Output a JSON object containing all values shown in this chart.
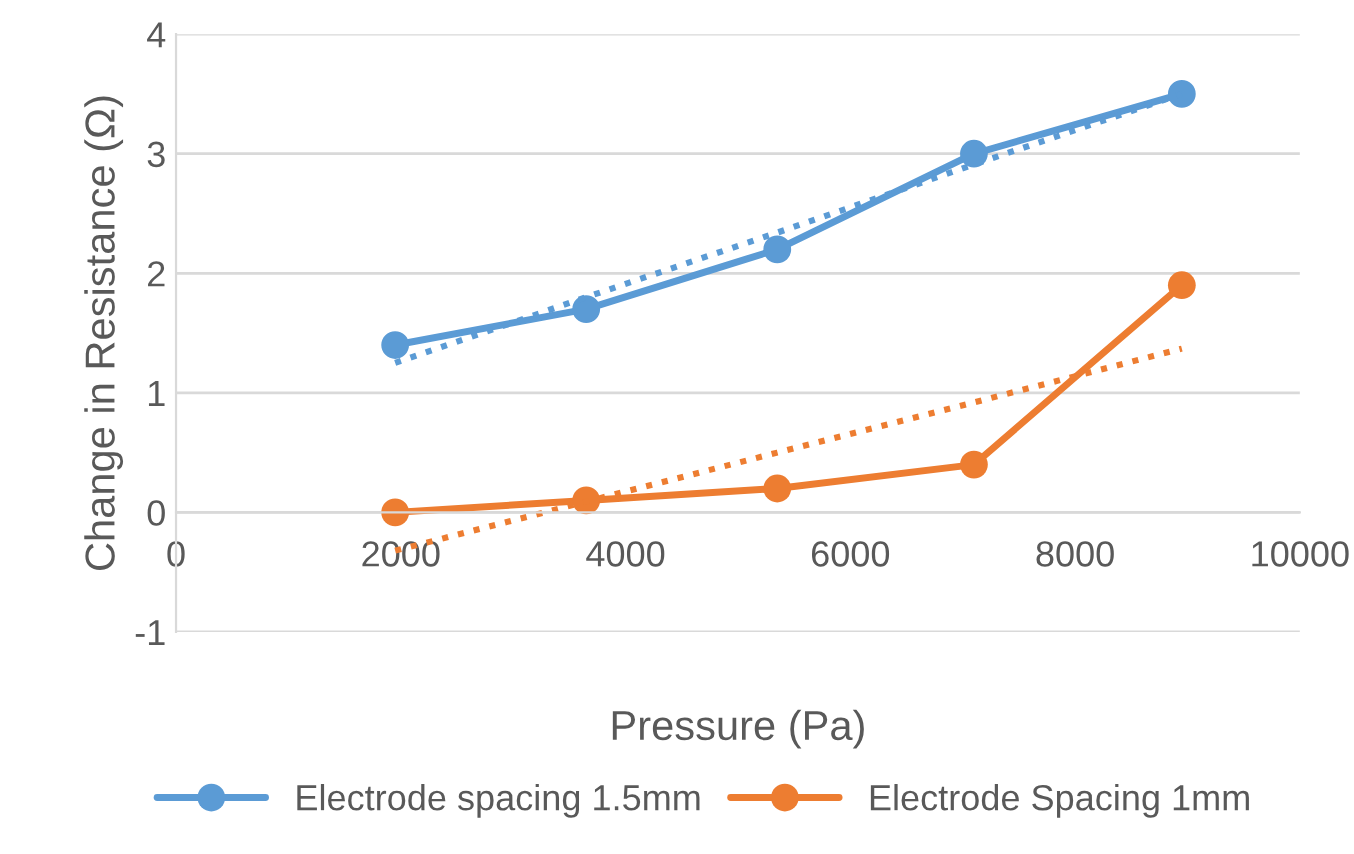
{
  "chart_data": {
    "type": "line",
    "xlabel": "Pressure (Pa)",
    "ylabel": "Change in Resistance (Ω)",
    "x": [
      1950,
      3650,
      5350,
      7100,
      8950
    ],
    "series": [
      {
        "name": "Electrode spacing 1.5mm",
        "color": "#5b9bd5",
        "values": [
          1.4,
          1.7,
          2.2,
          3.0,
          3.5
        ]
      },
      {
        "name": "Electrode Spacing 1mm",
        "color": "#ed7d31",
        "values": [
          0,
          0.1,
          0.2,
          0.4,
          1.9
        ]
      },
      {
        "color": "#5b9bd5",
        "values": [
          1.25,
          1.8,
          2.34,
          2.91,
          3.5
        ],
        "marker": "none",
        "line_style": "dotted"
      },
      {
        "color": "#ed7d31",
        "values": [
          -0.32,
          0.09,
          0.5,
          0.92,
          1.37
        ],
        "marker": "none",
        "line_style": "dotted"
      }
    ],
    "xlim": [
      0,
      10000
    ],
    "xticks": [
      0,
      2000,
      4000,
      6000,
      8000,
      10000
    ],
    "ylim": [
      -1,
      4
    ],
    "yticks": [
      -1,
      0,
      1,
      2,
      3,
      4
    ],
    "grid": "y",
    "legend": "bottom",
    "marker": "circle",
    "line_style": "solid"
  }
}
